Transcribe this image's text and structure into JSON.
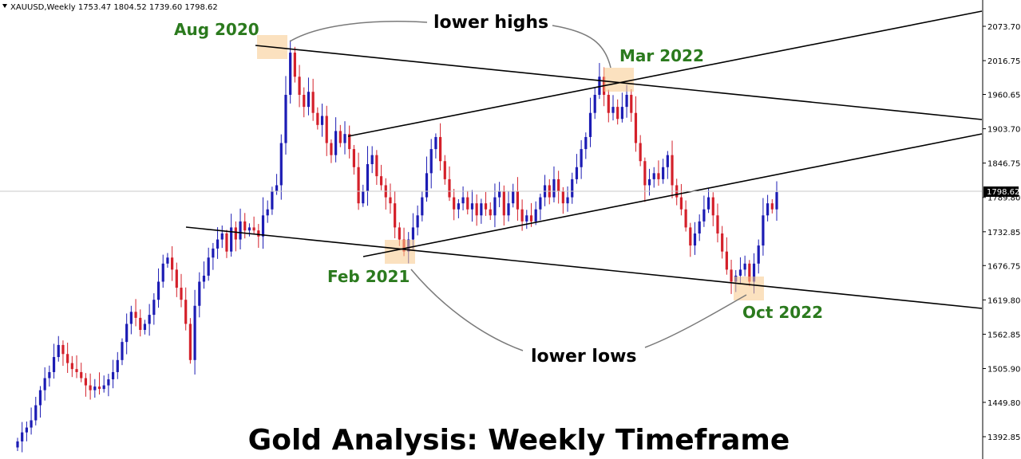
{
  "symbol_info": "XAUUSD,Weekly  1753.47 1804.52 1739.60 1798.62",
  "title": "Gold Analysis: Weekly Timeframe",
  "colors": {
    "bull": "#1c1cb4",
    "bear": "#d4202a",
    "annotation_green": "#2b7a1e",
    "highlight": "#f7c98a",
    "trendline": "#000000"
  },
  "chart_data": {
    "type": "candlestick",
    "title": "Gold Analysis: Weekly Timeframe",
    "ylim": [
      1350,
      2110
    ],
    "grid": false,
    "y_ticks": [
      {
        "value": 2073.7,
        "label": "2073.70"
      },
      {
        "value": 2016.75,
        "label": "2016.75"
      },
      {
        "value": 1960.65,
        "label": "1960.65"
      },
      {
        "value": 1903.7,
        "label": "1903.70"
      },
      {
        "value": 1846.75,
        "label": "1846.75"
      },
      {
        "value": 1789.8,
        "label": "1789.80"
      },
      {
        "value": 1732.85,
        "label": "1732.85"
      },
      {
        "value": 1676.75,
        "label": "1676.75"
      },
      {
        "value": 1619.8,
        "label": "1619.80"
      },
      {
        "value": 1562.85,
        "label": "1562.85"
      },
      {
        "value": 1505.9,
        "label": "1505.90"
      },
      {
        "value": 1449.8,
        "label": "1449.80"
      },
      {
        "value": 1392.85,
        "label": "1392.85"
      }
    ],
    "current_price": {
      "value": 1798.62,
      "label": "1798.62"
    },
    "closes": [
      1385,
      1400,
      1408,
      1420,
      1445,
      1470,
      1490,
      1500,
      1525,
      1545,
      1530,
      1515,
      1505,
      1500,
      1490,
      1478,
      1470,
      1476,
      1472,
      1478,
      1488,
      1500,
      1520,
      1550,
      1580,
      1600,
      1590,
      1570,
      1580,
      1595,
      1620,
      1650,
      1680,
      1690,
      1670,
      1640,
      1620,
      1580,
      1520,
      1610,
      1650,
      1660,
      1690,
      1705,
      1720,
      1730,
      1700,
      1740,
      1720,
      1750,
      1735,
      1740,
      1735,
      1725,
      1760,
      1770,
      1800,
      1810,
      1880,
      1960,
      2030,
      1990,
      1960,
      1940,
      1965,
      1930,
      1910,
      1925,
      1880,
      1860,
      1900,
      1880,
      1895,
      1870,
      1840,
      1780,
      1800,
      1845,
      1860,
      1825,
      1810,
      1790,
      1780,
      1740,
      1720,
      1700,
      1720,
      1740,
      1760,
      1790,
      1830,
      1870,
      1890,
      1850,
      1820,
      1790,
      1770,
      1780,
      1790,
      1770,
      1780,
      1760,
      1780,
      1770,
      1760,
      1790,
      1800,
      1760,
      1780,
      1800,
      1770,
      1750,
      1760,
      1750,
      1770,
      1790,
      1810,
      1790,
      1820,
      1800,
      1780,
      1790,
      1820,
      1840,
      1870,
      1890,
      1930,
      1960,
      1990,
      1960,
      1930,
      1940,
      1920,
      1940,
      1960,
      1930,
      1880,
      1850,
      1810,
      1820,
      1830,
      1820,
      1840,
      1860,
      1810,
      1790,
      1770,
      1740,
      1710,
      1730,
      1750,
      1770,
      1790,
      1760,
      1730,
      1700,
      1670,
      1650,
      1660,
      1670,
      1680,
      1650,
      1680,
      1710,
      1760,
      1780,
      1770,
      1798.62
    ]
  },
  "annotations": {
    "aug_2020": "Aug 2020",
    "mar_2022": "Mar 2022",
    "feb_2021": "Feb 2021",
    "oct_2022": "Oct 2022",
    "lower_highs": "lower highs",
    "lower_lows": "lower lows"
  }
}
